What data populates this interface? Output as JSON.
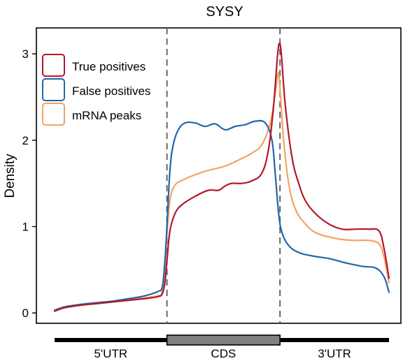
{
  "chart_data": {
    "type": "line",
    "title": "SYSY",
    "xlabel": "",
    "ylabel": "Density",
    "x_range": [
      0,
      1
    ],
    "ylim": [
      -0.12,
      3.3
    ],
    "y_ticks": [
      "0",
      "1",
      "2",
      "3"
    ],
    "grid": false,
    "legend_position": "top-left",
    "region_boundaries": [
      0.336,
      0.674
    ],
    "regions": [
      {
        "label": "5'UTR",
        "start": 0.0,
        "end": 0.336
      },
      {
        "label": "CDS",
        "start": 0.336,
        "end": 0.674
      },
      {
        "label": "3'UTR",
        "start": 0.674,
        "end": 1.0
      }
    ],
    "series": [
      {
        "name": "True positives",
        "color": "#B2182B",
        "points": [
          [
            0.0,
            0.02
          ],
          [
            0.03,
            0.06
          ],
          [
            0.08,
            0.09
          ],
          [
            0.13,
            0.11
          ],
          [
            0.18,
            0.13
          ],
          [
            0.23,
            0.15
          ],
          [
            0.28,
            0.17
          ],
          [
            0.31,
            0.19
          ],
          [
            0.322,
            0.22
          ],
          [
            0.33,
            0.35
          ],
          [
            0.336,
            0.6
          ],
          [
            0.345,
            0.95
          ],
          [
            0.36,
            1.15
          ],
          [
            0.38,
            1.25
          ],
          [
            0.42,
            1.35
          ],
          [
            0.46,
            1.42
          ],
          [
            0.49,
            1.42
          ],
          [
            0.51,
            1.47
          ],
          [
            0.53,
            1.5
          ],
          [
            0.56,
            1.5
          ],
          [
            0.59,
            1.53
          ],
          [
            0.62,
            1.62
          ],
          [
            0.64,
            1.9
          ],
          [
            0.655,
            2.4
          ],
          [
            0.666,
            2.95
          ],
          [
            0.672,
            3.12
          ],
          [
            0.678,
            3.0
          ],
          [
            0.69,
            2.4
          ],
          [
            0.71,
            1.8
          ],
          [
            0.73,
            1.5
          ],
          [
            0.75,
            1.3
          ],
          [
            0.78,
            1.15
          ],
          [
            0.82,
            1.03
          ],
          [
            0.86,
            0.97
          ],
          [
            0.9,
            0.97
          ],
          [
            0.94,
            0.97
          ],
          [
            0.97,
            0.95
          ],
          [
            0.985,
            0.75
          ],
          [
            1.0,
            0.4
          ]
        ]
      },
      {
        "name": "False positives",
        "color": "#2166AC",
        "points": [
          [
            0.0,
            0.03
          ],
          [
            0.03,
            0.07
          ],
          [
            0.08,
            0.1
          ],
          [
            0.13,
            0.12
          ],
          [
            0.18,
            0.14
          ],
          [
            0.23,
            0.17
          ],
          [
            0.26,
            0.19
          ],
          [
            0.29,
            0.22
          ],
          [
            0.31,
            0.25
          ],
          [
            0.322,
            0.3
          ],
          [
            0.33,
            0.6
          ],
          [
            0.336,
            1.0
          ],
          [
            0.345,
            1.65
          ],
          [
            0.355,
            1.95
          ],
          [
            0.37,
            2.12
          ],
          [
            0.39,
            2.2
          ],
          [
            0.42,
            2.2
          ],
          [
            0.45,
            2.16
          ],
          [
            0.48,
            2.19
          ],
          [
            0.51,
            2.12
          ],
          [
            0.54,
            2.16
          ],
          [
            0.57,
            2.18
          ],
          [
            0.6,
            2.22
          ],
          [
            0.63,
            2.2
          ],
          [
            0.65,
            2.0
          ],
          [
            0.66,
            1.6
          ],
          [
            0.67,
            1.15
          ],
          [
            0.68,
            0.93
          ],
          [
            0.7,
            0.78
          ],
          [
            0.73,
            0.7
          ],
          [
            0.77,
            0.66
          ],
          [
            0.82,
            0.63
          ],
          [
            0.87,
            0.58
          ],
          [
            0.92,
            0.54
          ],
          [
            0.96,
            0.52
          ],
          [
            0.985,
            0.42
          ],
          [
            1.0,
            0.24
          ]
        ]
      },
      {
        "name": "mRNA peaks",
        "color": "#F4A460",
        "points": [
          [
            0.0,
            0.02
          ],
          [
            0.03,
            0.06
          ],
          [
            0.08,
            0.09
          ],
          [
            0.13,
            0.11
          ],
          [
            0.18,
            0.14
          ],
          [
            0.23,
            0.16
          ],
          [
            0.28,
            0.18
          ],
          [
            0.31,
            0.2
          ],
          [
            0.322,
            0.24
          ],
          [
            0.33,
            0.5
          ],
          [
            0.336,
            0.9
          ],
          [
            0.345,
            1.3
          ],
          [
            0.36,
            1.48
          ],
          [
            0.39,
            1.55
          ],
          [
            0.42,
            1.6
          ],
          [
            0.45,
            1.64
          ],
          [
            0.48,
            1.67
          ],
          [
            0.51,
            1.7
          ],
          [
            0.55,
            1.77
          ],
          [
            0.59,
            1.85
          ],
          [
            0.62,
            1.95
          ],
          [
            0.645,
            2.2
          ],
          [
            0.66,
            2.55
          ],
          [
            0.667,
            2.75
          ],
          [
            0.672,
            2.7
          ],
          [
            0.685,
            2.0
          ],
          [
            0.7,
            1.5
          ],
          [
            0.72,
            1.2
          ],
          [
            0.75,
            1.03
          ],
          [
            0.78,
            0.93
          ],
          [
            0.82,
            0.88
          ],
          [
            0.86,
            0.85
          ],
          [
            0.9,
            0.84
          ],
          [
            0.94,
            0.84
          ],
          [
            0.97,
            0.8
          ],
          [
            0.985,
            0.65
          ],
          [
            1.0,
            0.35
          ]
        ]
      }
    ]
  }
}
